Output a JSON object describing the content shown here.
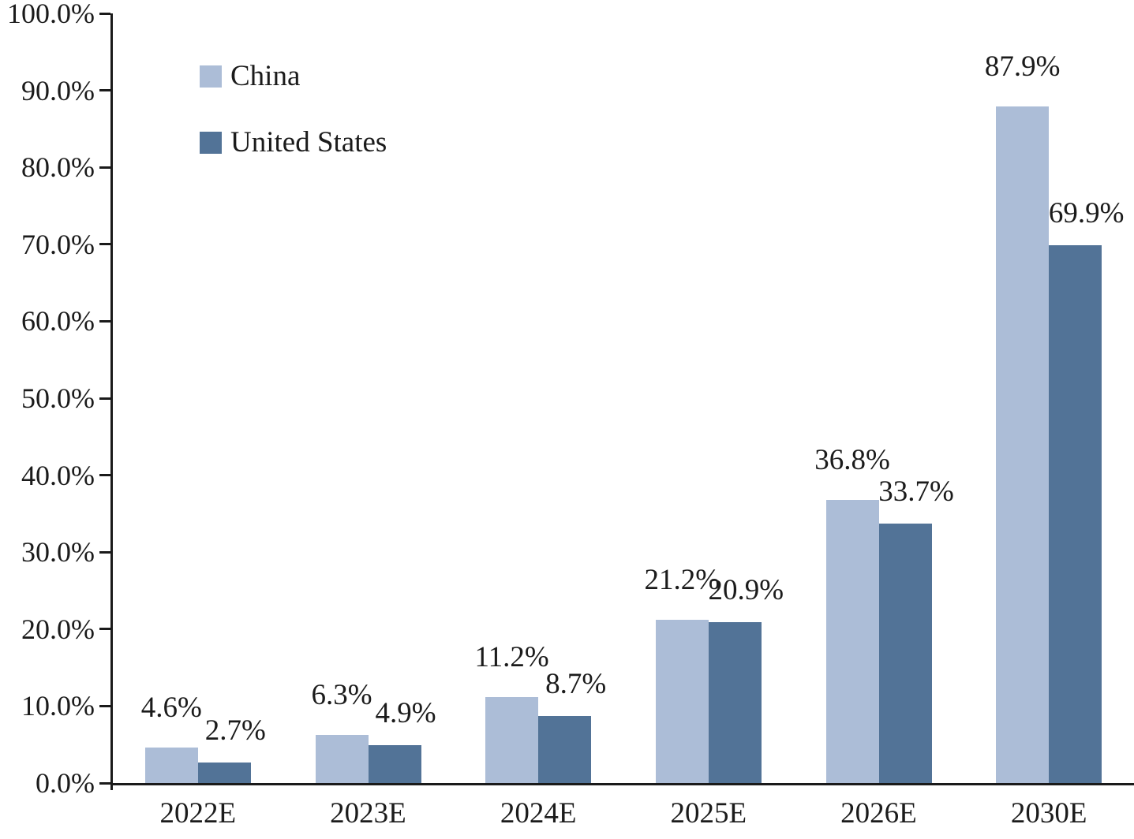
{
  "chart_data": {
    "type": "bar",
    "title": "",
    "xlabel": "",
    "ylabel": "",
    "categories": [
      "2022E",
      "2023E",
      "2024E",
      "2025E",
      "2026E",
      "2030E"
    ],
    "series": [
      {
        "name": "China",
        "color": "#acbdd7",
        "values": [
          4.6,
          6.3,
          11.2,
          21.2,
          36.8,
          87.9
        ],
        "data_labels": [
          "4.6%",
          "6.3%",
          "11.2%",
          "21.2%",
          "36.8%",
          "87.9%"
        ]
      },
      {
        "name": "United States",
        "color": "#527397",
        "values": [
          2.7,
          4.9,
          8.7,
          20.9,
          33.7,
          69.9
        ],
        "data_labels": [
          "2.7%",
          "4.9%",
          "8.7%",
          "20.9%",
          "33.7%",
          "69.9%"
        ]
      }
    ],
    "ylim": [
      0,
      100
    ],
    "y_tick_step": 10,
    "y_tick_labels": [
      "0.0%",
      "10.0%",
      "20.0%",
      "30.0%",
      "40.0%",
      "50.0%",
      "60.0%",
      "70.0%",
      "80.0%",
      "90.0%",
      "100.0%"
    ],
    "grid": false,
    "legend": {
      "position": "top-left-inside",
      "entries": [
        "China",
        "United States"
      ]
    },
    "colors": {
      "axis": "#1a1a1a",
      "text": "#1b1b1b",
      "background": "#ffffff"
    }
  }
}
